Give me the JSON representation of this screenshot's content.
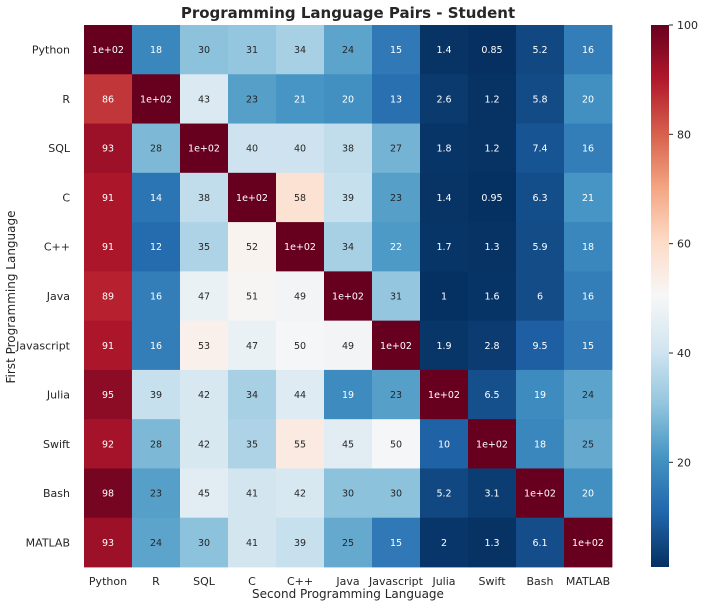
{
  "chart_data": {
    "type": "heatmap",
    "title": "Programming Language Pairs - Student",
    "xlabel": "Second Programming Language",
    "ylabel": "First Programming Language",
    "x_categories": [
      "Python",
      "R",
      "SQL",
      "C",
      "C++",
      "Java",
      "Javascript",
      "Julia",
      "Swift",
      "Bash",
      "MATLAB"
    ],
    "y_categories": [
      "Python",
      "R",
      "SQL",
      "C",
      "C++",
      "Java",
      "Javascript",
      "Julia",
      "Swift",
      "Bash",
      "MATLAB"
    ],
    "values": [
      [
        100,
        18,
        30,
        31,
        34,
        24,
        15,
        1.4,
        0.85,
        5.2,
        16
      ],
      [
        86,
        100,
        43,
        23,
        21,
        20,
        13,
        2.6,
        1.2,
        5.8,
        20
      ],
      [
        93,
        28,
        100,
        40,
        40,
        38,
        27,
        1.8,
        1.2,
        7.4,
        16
      ],
      [
        91,
        14,
        38,
        100,
        58,
        39,
        23,
        1.4,
        0.95,
        6.3,
        21
      ],
      [
        91,
        12,
        35,
        52,
        100,
        34,
        22,
        1.7,
        1.3,
        5.9,
        18
      ],
      [
        89,
        16,
        47,
        51,
        49,
        100,
        31,
        1,
        1.6,
        6,
        16
      ],
      [
        91,
        16,
        53,
        47,
        50,
        49,
        100,
        1.9,
        2.8,
        9.5,
        15
      ],
      [
        95,
        39,
        42,
        34,
        44,
        19,
        23,
        100,
        6.5,
        19,
        24
      ],
      [
        92,
        28,
        42,
        35,
        55,
        45,
        50,
        10,
        100,
        18,
        25
      ],
      [
        98,
        23,
        45,
        41,
        42,
        30,
        30,
        5.2,
        3.1,
        100,
        20
      ],
      [
        93,
        24,
        30,
        41,
        39,
        25,
        15,
        2,
        1.3,
        6.1,
        100
      ]
    ],
    "annotations": [
      [
        "1e+02",
        "18",
        "30",
        "31",
        "34",
        "24",
        "15",
        "1.4",
        "0.85",
        "5.2",
        "16"
      ],
      [
        "86",
        "1e+02",
        "43",
        "23",
        "21",
        "20",
        "13",
        "2.6",
        "1.2",
        "5.8",
        "20"
      ],
      [
        "93",
        "28",
        "1e+02",
        "40",
        "40",
        "38",
        "27",
        "1.8",
        "1.2",
        "7.4",
        "16"
      ],
      [
        "91",
        "14",
        "38",
        "1e+02",
        "58",
        "39",
        "23",
        "1.4",
        "0.95",
        "6.3",
        "21"
      ],
      [
        "91",
        "12",
        "35",
        "52",
        "1e+02",
        "34",
        "22",
        "1.7",
        "1.3",
        "5.9",
        "18"
      ],
      [
        "89",
        "16",
        "47",
        "51",
        "49",
        "1e+02",
        "31",
        "1",
        "1.6",
        "6",
        "16"
      ],
      [
        "91",
        "16",
        "53",
        "47",
        "50",
        "49",
        "1e+02",
        "1.9",
        "2.8",
        "9.5",
        "15"
      ],
      [
        "95",
        "39",
        "42",
        "34",
        "44",
        "19",
        "23",
        "1e+02",
        "6.5",
        "19",
        "24"
      ],
      [
        "92",
        "28",
        "42",
        "35",
        "55",
        "45",
        "50",
        "10",
        "1e+02",
        "18",
        "25"
      ],
      [
        "98",
        "23",
        "45",
        "41",
        "42",
        "30",
        "30",
        "5.2",
        "3.1",
        "1e+02",
        "20"
      ],
      [
        "93",
        "24",
        "30",
        "41",
        "39",
        "25",
        "15",
        "2",
        "1.3",
        "6.1",
        "1e+02"
      ]
    ],
    "colormap": "RdBu_r",
    "colorbar": {
      "range": [
        0.85,
        100
      ],
      "ticks": [
        20,
        40,
        60,
        80,
        100
      ],
      "tick_labels": [
        "20",
        "40",
        "60",
        "80",
        "100"
      ]
    },
    "grid": false,
    "colors": {
      "min": "#053061",
      "mid": "#f7f7f7",
      "max": "#67001f"
    }
  }
}
